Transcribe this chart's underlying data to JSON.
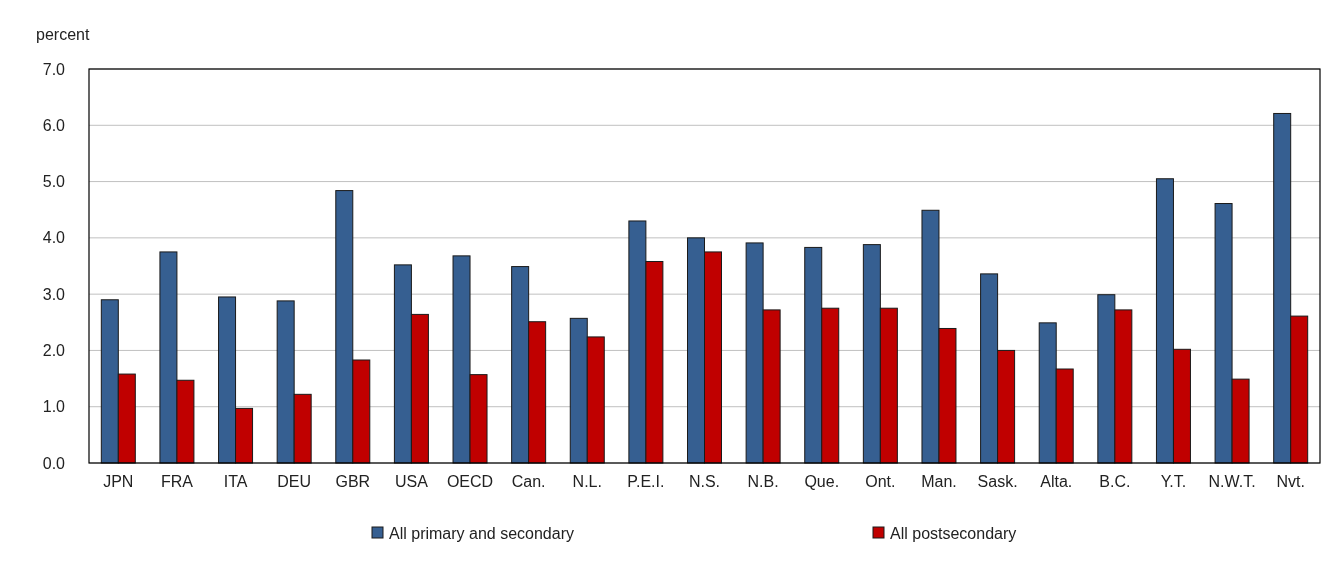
{
  "chart_data": {
    "type": "bar",
    "ylabel": "percent",
    "categories": [
      "JPN",
      "FRA",
      "ITA",
      "DEU",
      "GBR",
      "USA",
      "OECD",
      "Can.",
      "N.L.",
      "P.E.I.",
      "N.S.",
      "N.B.",
      "Que.",
      "Ont.",
      "Man.",
      "Sask.",
      "Alta.",
      "B.C.",
      "Y.T.",
      "N.W.T.",
      "Nvt."
    ],
    "series": [
      {
        "name": "All primary and secondary",
        "color": "#365f91",
        "values": [
          2.9,
          3.75,
          2.95,
          2.88,
          4.84,
          3.52,
          3.68,
          3.49,
          2.57,
          4.3,
          4.0,
          3.91,
          3.83,
          3.88,
          4.49,
          3.36,
          2.49,
          2.99,
          5.05,
          4.61,
          6.21
        ]
      },
      {
        "name": "All postsecondary",
        "color": "#c00000",
        "values": [
          1.58,
          1.47,
          0.97,
          1.22,
          1.83,
          2.64,
          1.57,
          2.51,
          2.24,
          3.58,
          3.75,
          2.72,
          2.75,
          2.75,
          2.39,
          2.0,
          1.67,
          2.72,
          2.02,
          1.49,
          2.61
        ]
      }
    ],
    "ylim": [
      0,
      7
    ],
    "yticks": [
      {
        "value": 0,
        "label": "0.0"
      },
      {
        "value": 1,
        "label": "1.0"
      },
      {
        "value": 2,
        "label": "2.0"
      },
      {
        "value": 3,
        "label": "3.0"
      },
      {
        "value": 4,
        "label": "4.0"
      },
      {
        "value": 5,
        "label": "5.0"
      },
      {
        "value": 6,
        "label": "6.0"
      },
      {
        "value": 7,
        "label": "7.0"
      }
    ],
    "grid": "y",
    "legend": "bottom"
  }
}
